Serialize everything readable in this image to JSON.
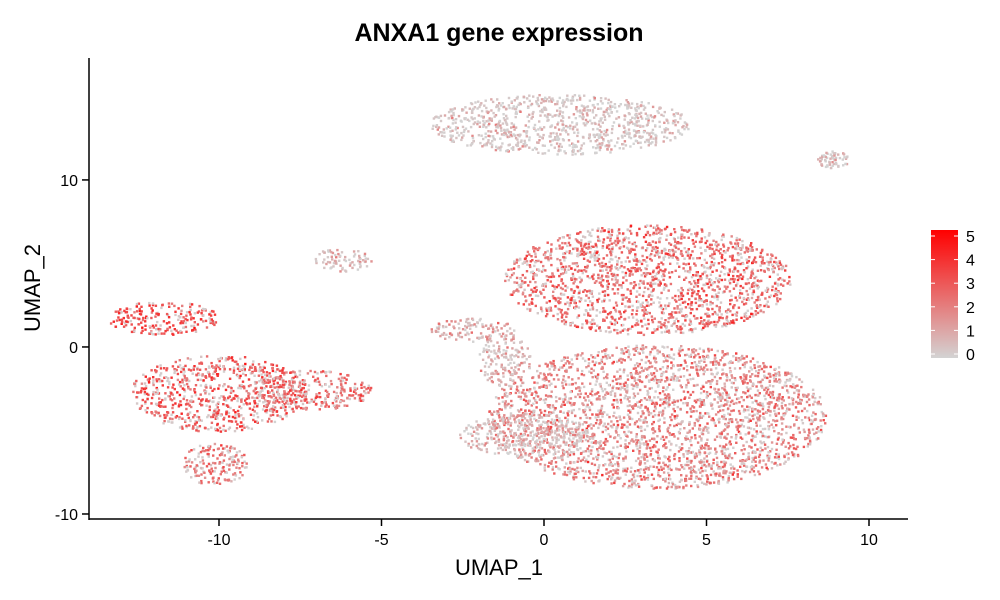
{
  "chart_data": {
    "type": "scatter",
    "title": "ANXA1 gene expression",
    "xlabel": "UMAP_1",
    "ylabel": "UMAP_2",
    "xlim": [
      -14,
      11.2
    ],
    "ylim": [
      -10.3,
      17.3
    ],
    "x_ticks": [
      -10,
      -5,
      0,
      5,
      10
    ],
    "x_tick_labels": [
      "-10",
      "-5",
      "0",
      "5",
      "10"
    ],
    "y_ticks": [
      -10,
      0,
      10
    ],
    "y_tick_labels": [
      "-10",
      "0",
      "10"
    ],
    "grid": false,
    "legend": {
      "placement": "right",
      "values": [
        0,
        1,
        2,
        3,
        4,
        5
      ],
      "labels": [
        "0",
        "1",
        "2",
        "3",
        "4",
        "5"
      ],
      "low_color": "#d3d3d3",
      "high_color": "#ff0000"
    },
    "clusters": [
      {
        "name": "top",
        "cx": 0.5,
        "cy": 13.3,
        "rx": 4.0,
        "ry": 1.8,
        "level": 0.5
      },
      {
        "name": "top-right-small",
        "cx": 8.9,
        "cy": 11.2,
        "rx": 0.5,
        "ry": 0.5,
        "level": 0.3
      },
      {
        "name": "right-upper",
        "cx": 3.2,
        "cy": 4.0,
        "rx": 4.4,
        "ry": 3.3,
        "level": 2.6
      },
      {
        "name": "right-lower",
        "cx": 3.5,
        "cy": -4.2,
        "rx": 5.2,
        "ry": 4.3,
        "level": 2.0
      },
      {
        "name": "right-lower-left",
        "cx": -0.6,
        "cy": -5.3,
        "rx": 2.0,
        "ry": 1.3,
        "level": 0.6
      },
      {
        "name": "left-upper",
        "cx": -11.7,
        "cy": 1.7,
        "rx": 1.7,
        "ry": 1.0,
        "level": 3.2
      },
      {
        "name": "left-main",
        "cx": -10.0,
        "cy": -2.8,
        "rx": 2.7,
        "ry": 2.3,
        "level": 3.0
      },
      {
        "name": "left-tail",
        "cx": -7.2,
        "cy": -2.6,
        "rx": 1.9,
        "ry": 1.2,
        "level": 2.4
      },
      {
        "name": "left-bottom",
        "cx": -10.1,
        "cy": -7.0,
        "rx": 1.0,
        "ry": 1.3,
        "level": 2.2
      },
      {
        "name": "small-mid-left",
        "cx": -6.2,
        "cy": 5.2,
        "rx": 0.9,
        "ry": 0.7,
        "level": 0.8
      },
      {
        "name": "small-strand",
        "cx": -2.2,
        "cy": 1.0,
        "rx": 1.3,
        "ry": 0.7,
        "level": 1.2
      },
      {
        "name": "strand-right",
        "cx": -1.2,
        "cy": -0.8,
        "rx": 0.8,
        "ry": 1.6,
        "level": 1.0
      }
    ]
  }
}
